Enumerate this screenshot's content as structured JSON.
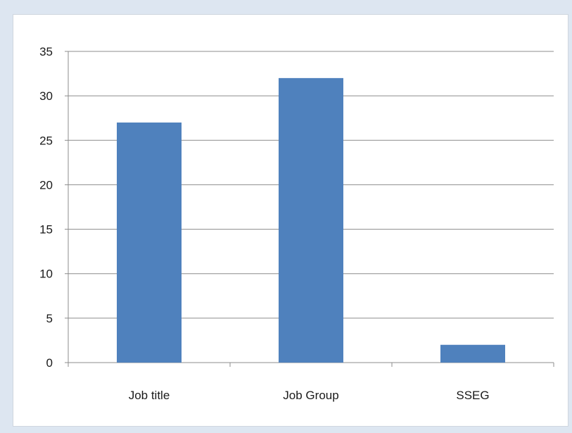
{
  "chart_data": {
    "type": "bar",
    "title": "",
    "xlabel": "",
    "ylabel": "",
    "categories": [
      "Job title",
      "Job Group",
      "SSEG"
    ],
    "series": [
      {
        "values": [
          27,
          32,
          2
        ],
        "color": "#4f81bd"
      }
    ],
    "ylim": [
      0,
      35
    ],
    "yticks": [
      0,
      5,
      10,
      15,
      20,
      25,
      30,
      35
    ],
    "grid": true,
    "legend": "none"
  }
}
